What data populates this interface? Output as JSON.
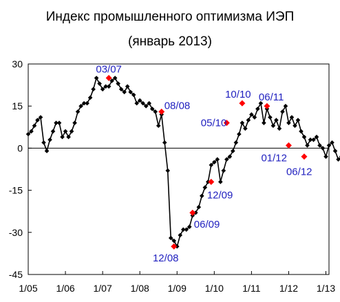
{
  "title_line1": "Индекс промышленного оптимизма ИЭП",
  "title_line2": "(январь 2013)",
  "colors": {
    "series": "#000000",
    "highlight": "#ff0000",
    "annotation": "#1f1fbf",
    "zero_line": "#000000"
  },
  "chart_data": {
    "type": "line",
    "ylim": [
      -45,
      30
    ],
    "yticks": [
      30,
      15,
      0,
      -15,
      -30,
      -45
    ],
    "ytick_labels": [
      "30",
      "15",
      "0",
      "-15",
      "-30",
      "-45"
    ],
    "xlim": [
      2005.0,
      2013.083
    ],
    "xticks": [
      2005,
      2006,
      2007,
      2008,
      2009,
      2010,
      2011,
      2012,
      2013
    ],
    "xtick_labels": [
      "1/05",
      "1/06",
      "1/07",
      "1/08",
      "1/09",
      "1/10",
      "1/11",
      "1/12",
      "1/13"
    ],
    "values": [
      5,
      6,
      8,
      10,
      11,
      2,
      -1,
      3,
      6,
      9,
      9,
      4,
      6,
      4,
      6,
      9,
      13,
      15,
      16,
      16,
      18,
      21,
      25,
      23,
      21,
      22,
      22,
      24,
      25,
      23,
      21,
      20,
      22,
      20,
      19,
      16,
      17,
      16,
      15,
      16,
      14,
      13,
      8,
      12,
      2,
      -8,
      -32,
      -33,
      -35,
      -31,
      -29,
      -29,
      -28,
      -24,
      -23,
      -21,
      -17,
      -14,
      -12,
      -6,
      -5,
      -4,
      -12,
      -8,
      -4,
      -3,
      -1,
      2,
      5,
      9,
      7,
      10,
      12,
      11,
      14,
      16,
      9,
      14,
      11,
      8,
      10,
      7,
      13,
      15,
      9,
      11,
      8,
      10,
      6,
      4,
      1,
      3,
      3,
      4,
      1,
      0,
      -3,
      1,
      2,
      -1,
      -4,
      -3,
      -6
    ],
    "highlights": [
      {
        "label": "03/07",
        "value": 25
      },
      {
        "label": "08/08",
        "value": 13
      },
      {
        "label": "12/08",
        "value": -35
      },
      {
        "label": "06/09",
        "value": -23
      },
      {
        "label": "12/09",
        "value": -12
      },
      {
        "label": "05/10",
        "value": 9
      },
      {
        "label": "10/10",
        "value": 16
      },
      {
        "label": "06/11",
        "value": 15
      },
      {
        "label": "01/12",
        "value": 1
      },
      {
        "label": "06/12",
        "value": -3
      }
    ]
  }
}
